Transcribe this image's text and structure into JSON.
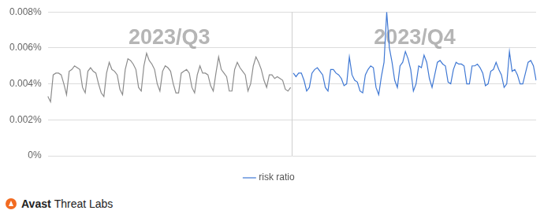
{
  "chart_data": {
    "type": "line",
    "annotations": [
      "2023/Q3",
      "2023/Q4"
    ],
    "source": "Avast Threat Labs",
    "categories": [
      null,
      null,
      null,
      null,
      null,
      null,
      null,
      null,
      null,
      null,
      null,
      null,
      null,
      null,
      null,
      null,
      null,
      null,
      null,
      null,
      null,
      null,
      null,
      null,
      null,
      null,
      null,
      null,
      null,
      null,
      null,
      null,
      null,
      null,
      null,
      null,
      null,
      null,
      null,
      null,
      null,
      null,
      null,
      null,
      null,
      null,
      null,
      null,
      null,
      null,
      null,
      null,
      null,
      null,
      null,
      null,
      null,
      null,
      null,
      null,
      null,
      null,
      null,
      null,
      null,
      null,
      null,
      null,
      null,
      null,
      null,
      null,
      null,
      null,
      null,
      null,
      null,
      null,
      null,
      null,
      null,
      null,
      null,
      null,
      null,
      null,
      null,
      null,
      null,
      null,
      null,
      null,
      null,
      null,
      null,
      null,
      null,
      null,
      null,
      null,
      null,
      null,
      null,
      null,
      null,
      null,
      null,
      null,
      null,
      null,
      null,
      null,
      null,
      null,
      null,
      null,
      null,
      null,
      null,
      null,
      null,
      null,
      null,
      null,
      null,
      null,
      null,
      null,
      null,
      null,
      null,
      null,
      null,
      null,
      null,
      null,
      null,
      null,
      null,
      null,
      null,
      null,
      null,
      null,
      null,
      null,
      null,
      null,
      null,
      null,
      null,
      null,
      null,
      null,
      null,
      null,
      null,
      null,
      null,
      null,
      null,
      null,
      null,
      null,
      null,
      null,
      null,
      null,
      null,
      null,
      null,
      null,
      null,
      null,
      null,
      null,
      null,
      null,
      null,
      null,
      null,
      null,
      null,
      null
    ],
    "series": [
      {
        "color": "#8c8c8c",
        "values": [
          0.0033,
          0.003,
          0.0045,
          0.0046,
          0.0046,
          0.0045,
          0.004,
          0.0034,
          0.0047,
          0.0048,
          0.005,
          0.0049,
          0.0048,
          0.0038,
          0.0035,
          0.0047,
          0.0049,
          0.0047,
          0.0046,
          0.004,
          0.0035,
          0.0033,
          0.0046,
          0.0052,
          0.0048,
          0.0047,
          0.0045,
          0.0037,
          0.0034,
          0.0048,
          0.0054,
          0.0053,
          0.0051,
          0.0048,
          0.0038,
          0.0036,
          0.005,
          0.0057,
          0.0053,
          0.0051,
          0.0048,
          0.004,
          0.0036,
          0.0047,
          0.005,
          0.0049,
          0.0047,
          0.004,
          0.0035,
          0.0035,
          0.0046,
          0.0047,
          0.0048,
          0.0046,
          0.0038,
          0.0035,
          0.0045,
          0.005,
          0.0046,
          0.0046,
          0.0045,
          0.0039,
          0.0036,
          0.0046,
          0.0055,
          0.0048,
          0.0046,
          0.0044,
          0.0036,
          0.0036,
          0.0048,
          0.0052,
          0.0049,
          0.0047,
          0.0045,
          0.0036,
          0.004,
          0.005,
          0.0055,
          0.0052,
          0.0048,
          0.0042,
          0.0038,
          0.0045,
          0.0045,
          0.0043,
          0.0044,
          0.0043,
          0.0042,
          0.0037,
          0.0036,
          0.0038,
          null,
          null,
          null,
          null,
          null,
          null,
          null,
          null,
          null,
          null,
          null,
          null,
          null,
          null,
          null,
          null,
          null,
          null,
          null,
          null,
          null,
          null,
          null,
          null,
          null,
          null,
          null,
          null,
          null,
          null,
          null,
          null,
          null,
          null,
          null,
          null,
          null,
          null,
          null,
          null,
          null,
          null,
          null,
          null,
          null,
          null,
          null,
          null,
          null,
          null,
          null,
          null,
          null,
          null,
          null,
          null,
          null,
          null,
          null,
          null,
          null,
          null,
          null,
          null,
          null,
          null,
          null,
          null,
          null,
          null,
          null,
          null,
          null,
          null,
          null,
          null,
          null,
          null,
          null,
          null,
          null,
          null,
          null,
          null,
          null,
          null,
          null,
          null,
          null,
          null,
          null,
          null
        ]
      },
      {
        "name": "risk ratio",
        "color": "#3f78d4",
        "values": [
          null,
          null,
          null,
          null,
          null,
          null,
          null,
          null,
          null,
          null,
          null,
          null,
          null,
          null,
          null,
          null,
          null,
          null,
          null,
          null,
          null,
          null,
          null,
          null,
          null,
          null,
          null,
          null,
          null,
          null,
          null,
          null,
          null,
          null,
          null,
          null,
          null,
          null,
          null,
          null,
          null,
          null,
          null,
          null,
          null,
          null,
          null,
          null,
          null,
          null,
          null,
          null,
          null,
          null,
          null,
          null,
          null,
          null,
          null,
          null,
          null,
          null,
          null,
          null,
          null,
          null,
          null,
          null,
          null,
          null,
          null,
          null,
          null,
          null,
          null,
          null,
          null,
          null,
          null,
          null,
          null,
          null,
          null,
          null,
          null,
          null,
          null,
          null,
          null,
          null,
          null,
          null,
          0.0046,
          0.0044,
          0.0046,
          0.0046,
          0.0042,
          0.0036,
          0.0038,
          0.0046,
          0.0048,
          0.0049,
          0.0047,
          0.0045,
          0.0038,
          0.0036,
          0.0048,
          0.0048,
          0.0046,
          0.0045,
          0.0043,
          0.0039,
          0.004,
          0.0055,
          0.0045,
          0.0042,
          0.0041,
          0.0036,
          0.0035,
          0.0045,
          0.0048,
          0.005,
          0.0049,
          0.0038,
          0.0034,
          0.0044,
          0.0052,
          0.008,
          0.006,
          0.0052,
          0.0042,
          0.0038,
          0.005,
          0.0052,
          0.0058,
          0.0054,
          0.0048,
          0.0036,
          0.004,
          0.005,
          0.0049,
          0.0056,
          0.0052,
          0.0043,
          0.0038,
          0.0045,
          0.0052,
          0.0053,
          0.0051,
          0.005,
          0.0041,
          0.004,
          0.0048,
          0.0052,
          0.0051,
          0.0051,
          0.005,
          0.004,
          0.004,
          0.005,
          0.005,
          0.0051,
          0.0049,
          0.0046,
          0.0039,
          0.004,
          0.0047,
          0.0048,
          0.0052,
          0.0048,
          0.0045,
          0.0038,
          0.004,
          0.0058,
          0.0047,
          0.0048,
          0.0045,
          0.004,
          0.004,
          0.0046,
          0.0052,
          0.0053,
          0.005,
          0.0042
        ]
      }
    ],
    "ylim": [
      0,
      0.008
    ],
    "yticks": [
      {
        "value": 0,
        "label": "0%"
      },
      {
        "value": 0.002,
        "label": "0.002%"
      },
      {
        "value": 0.004,
        "label": "0.004%"
      },
      {
        "value": 0.006,
        "label": "0.006%"
      },
      {
        "value": 0.008,
        "label": "0.008%"
      }
    ],
    "grid": true,
    "legend": "bottom",
    "tick_labels": "y"
  }
}
